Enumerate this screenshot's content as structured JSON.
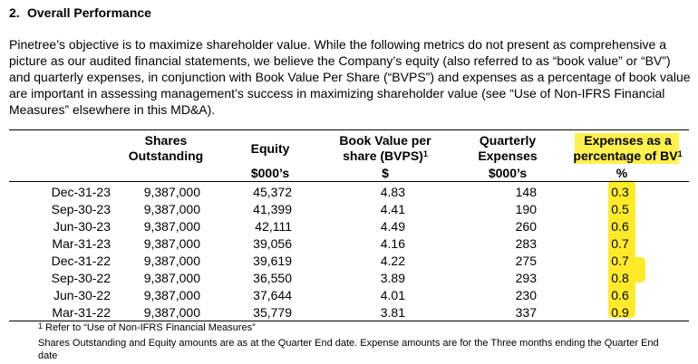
{
  "section": {
    "number": "2.",
    "title": "Overall Performance"
  },
  "intro": "Pinetree’s objective is to maximize shareholder value. While the following metrics do not present as comprehensive a picture as our audited financial statements, we believe the Company’s equity (also referred to as “book value” or “BV”) and quarterly expenses, in conjunction with Book Value Per Share (“BVPS”) and expenses as a percentage of book value are important in assessing management’s success in maximizing shareholder value (see “Use of Non-IFRS Financial Measures” elsewhere in this MD&A).",
  "table": {
    "headers": {
      "shares_line1": "Shares",
      "shares_line2": "Outstanding",
      "equity": "Equity",
      "equity_unit": "$000’s",
      "bvps_line1": "Book Value per",
      "bvps_line2": "share (BVPS)",
      "bvps_sup": "1",
      "bvps_unit": "$",
      "qexp_line1": "Quarterly",
      "qexp_line2": "Expenses",
      "qexp_unit": "$000’s",
      "pct_line1": "Expenses as a",
      "pct_line2": "percentage of BV",
      "pct_sup": "1",
      "pct_unit": "%"
    },
    "rows": [
      {
        "date": "Dec-31-23",
        "shares": "9,387,000",
        "equity": "45,372",
        "bvps": "4.83",
        "expenses": "148",
        "pct": "0.3"
      },
      {
        "date": "Sep-30-23",
        "shares": "9,387,000",
        "equity": "41,399",
        "bvps": "4.41",
        "expenses": "190",
        "pct": "0.5"
      },
      {
        "date": "Jun-30-23",
        "shares": "9,387,000",
        "equity": "42,111",
        "bvps": "4.49",
        "expenses": "260",
        "pct": "0.6"
      },
      {
        "date": "Mar-31-23",
        "shares": "9,387,000",
        "equity": "39,056",
        "bvps": "4.16",
        "expenses": "283",
        "pct": "0.7"
      },
      {
        "date": "Dec-31-22",
        "shares": "9,387,000",
        "equity": "39,619",
        "bvps": "4.22",
        "expenses": "275",
        "pct": "0.7"
      },
      {
        "date": "Sep-30-22",
        "shares": "9,387,000",
        "equity": "36,550",
        "bvps": "3.89",
        "expenses": "293",
        "pct": "0.8"
      },
      {
        "date": "Jun-30-22",
        "shares": "9,387,000",
        "equity": "37,644",
        "bvps": "4.01",
        "expenses": "230",
        "pct": "0.6"
      },
      {
        "date": "Mar-31-22",
        "shares": "9,387,000",
        "equity": "35,779",
        "bvps": "3.81",
        "expenses": "337",
        "pct": "0.9"
      }
    ]
  },
  "footnote": {
    "sup": "1",
    "text": " Refer to “Use of Non-IFRS Financial Measures”"
  },
  "note": "Shares Outstanding and Equity amounts are as at the Quarter End date. Expense amounts are for the Three months ending the Quarter End date",
  "colors": {
    "highlight": "#ffef3a"
  }
}
